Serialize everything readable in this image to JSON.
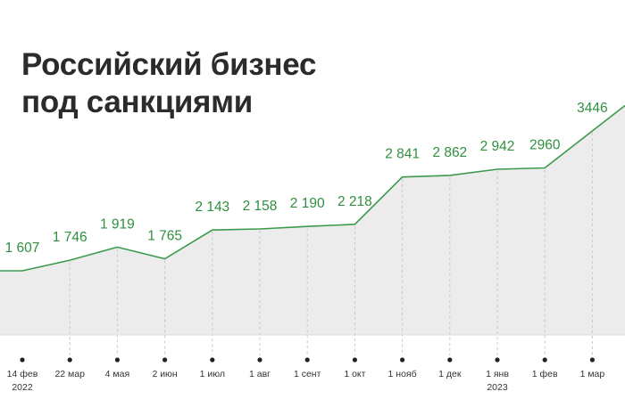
{
  "title": "Российский бизнес\nпод санкциями",
  "colors": {
    "line": "#3a9a4a",
    "value_text": "#2f8f3f",
    "area": "#ececec",
    "grid": "#c8c8c8",
    "axis": "#dcdcdc",
    "dot": "#222222"
  },
  "chart_data": {
    "type": "area",
    "title": "Российский бизнес под санкциями",
    "xlabel": "",
    "ylabel": "",
    "grid": "vertical dashed",
    "categories": [
      "14 фев",
      "22 мар",
      "4 мая",
      "2 июн",
      "1 июл",
      "1 авг",
      "1 сент",
      "1 окт",
      "1 нояб",
      "1 дек",
      "1 янв",
      "1 фев",
      "1 мар"
    ],
    "sub_labels": [
      "2022",
      "",
      "",
      "",
      "",
      "",
      "",
      "",
      "",
      "",
      "2023",
      "",
      ""
    ],
    "values": [
      1607,
      1746,
      1919,
      1765,
      2143,
      2158,
      2190,
      2218,
      2841,
      2862,
      2942,
      2960,
      3446
    ],
    "value_labels": [
      "1 607",
      "1 746",
      "1 919",
      "1 765",
      "2 143",
      "2 158",
      "2 190",
      "2 218",
      "2 841",
      "2 862",
      "2 942",
      "2960",
      "3446"
    ]
  }
}
